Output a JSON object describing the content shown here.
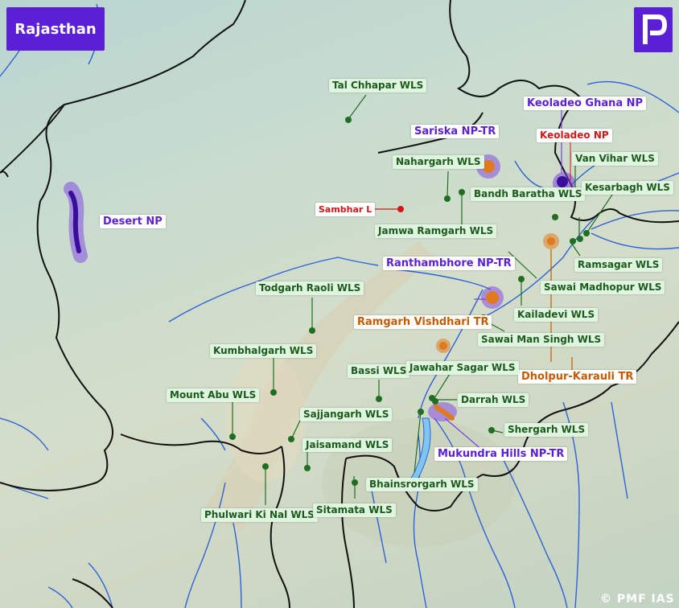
{
  "title": "Rajasthan",
  "logo_icon": "pmf-logo-icon",
  "copyright": "© PMF IAS",
  "colors": {
    "np_highlight": "#7b3fe4",
    "tr_highlight": "#e07a1f",
    "wls_dot": "#1f6e22",
    "lake_dot": "#d01818",
    "border": "#111111",
    "river": "#2f62d8",
    "title_bg": "#5b1fd6"
  },
  "legend_types": [
    "national-park",
    "tiger-reserve",
    "wildlife-sanctuary",
    "lake"
  ],
  "national_parks": {
    "desert": "Desert NP",
    "keoladeo_ghana": "Keoladeo Ghana NP",
    "keoladeo": "Keoladeo NP"
  },
  "tiger_reserves": {
    "sariska": "Sariska NP-TR",
    "ranthambhore": "Ranthambhore NP-TR",
    "ramgarh": "Ramgarh Vishdhari TR",
    "dholpur": "Dholpur-Karauli TR",
    "mukundra": "Mukundra Hills NP-TR"
  },
  "lakes": {
    "sambhar": "Sambhar L"
  },
  "sanctuaries": {
    "tal_chhapar": "Tal Chhapar WLS",
    "nahargarh": "Nahargarh WLS",
    "bandh_baratha": "Bandh Baratha WLS",
    "van_vihar": "Van Vihar WLS",
    "kesarbagh": "Kesarbagh WLS",
    "jamwa_ramgarh": "Jamwa Ramgarh WLS",
    "ramsagar": "Ramsagar WLS",
    "sawai_madhopur": "Sawai Madhopur WLS",
    "todgarh_raoli": "Todgarh Raoli WLS",
    "kailadevi": "Kailadevi WLS",
    "sawai_man_singh": "Sawai Man Singh WLS",
    "kumbhalgarh": "Kumbhalgarh WLS",
    "bassi": "Bassi WLS",
    "jawahar_sagar": "Jawahar Sagar WLS",
    "mount_abu": "Mount Abu WLS",
    "darrah": "Darrah WLS",
    "sajjangarh": "Sajjangarh WLS",
    "shergarh": "Shergarh WLS",
    "jaisamand": "Jaisamand WLS",
    "bhainsrorgarh": "Bhainsrorgarh WLS",
    "phulwari": "Phulwari Ki Nal WLS",
    "sitamata": "Sitamata WLS"
  }
}
